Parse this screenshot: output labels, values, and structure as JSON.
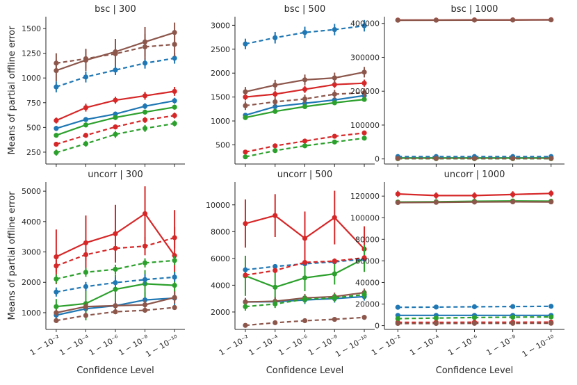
{
  "figure": {
    "xlabel": "Confidence Level",
    "ylabel": "Means of partial offline error",
    "x_tick_labels": [
      "1 − 10⁻²",
      "1 − 10⁻⁴",
      "1 − 10⁻⁶",
      "1 − 10⁻⁸",
      "1 − 10⁻¹⁰"
    ],
    "colors": {
      "blue": "#1f77b4",
      "red": "#d62728",
      "green": "#2ca02c",
      "brown": "#8c564b"
    }
  },
  "chart_data": [
    {
      "type": "line",
      "title": "bsc | 300",
      "x": [
        2,
        4,
        6,
        8,
        10
      ],
      "ylim": [
        130,
        1620
      ],
      "yticks": [
        250,
        500,
        750,
        1000,
        1250,
        1500
      ],
      "xlabel": "",
      "ylabel": "Means of partial offline error",
      "series": [
        {
          "name": "blue-solid",
          "color": "#1f77b4",
          "dashed": false,
          "values": [
            490,
            580,
            635,
            715,
            770
          ],
          "err": [
            25,
            25,
            25,
            30,
            30
          ]
        },
        {
          "name": "red-solid",
          "color": "#d62728",
          "dashed": false,
          "values": [
            570,
            700,
            775,
            820,
            865
          ],
          "err": [
            30,
            40,
            35,
            40,
            45
          ]
        },
        {
          "name": "green-solid",
          "color": "#2ca02c",
          "dashed": false,
          "values": [
            420,
            525,
            600,
            655,
            705
          ],
          "err": [
            20,
            25,
            25,
            25,
            25
          ]
        },
        {
          "name": "brown-solid",
          "color": "#8c564b",
          "dashed": false,
          "values": [
            1075,
            1180,
            1265,
            1365,
            1460
          ],
          "err": [
            110,
            110,
            130,
            150,
            100
          ]
        },
        {
          "name": "blue-dashed",
          "color": "#1f77b4",
          "dashed": true,
          "values": [
            910,
            1010,
            1080,
            1150,
            1200
          ],
          "err": [
            55,
            55,
            50,
            55,
            55
          ]
        },
        {
          "name": "red-dashed",
          "color": "#d62728",
          "dashed": true,
          "values": [
            330,
            420,
            505,
            575,
            620
          ],
          "err": [
            25,
            25,
            25,
            30,
            30
          ]
        },
        {
          "name": "green-dashed",
          "color": "#2ca02c",
          "dashed": true,
          "values": [
            245,
            335,
            430,
            490,
            540
          ],
          "err": [
            30,
            30,
            35,
            35,
            30
          ]
        },
        {
          "name": "brown-dashed",
          "color": "#8c564b",
          "dashed": true,
          "values": [
            1150,
            1195,
            1245,
            1315,
            1340
          ],
          "err": [
            100,
            100,
            120,
            130,
            120
          ]
        }
      ]
    },
    {
      "type": "line",
      "title": "bsc | 500",
      "x": [
        2,
        4,
        6,
        8,
        10
      ],
      "ylim": [
        100,
        3180
      ],
      "yticks": [
        500,
        1000,
        1500,
        2000,
        2500,
        3000
      ],
      "xlabel": "",
      "ylabel": "",
      "series": [
        {
          "name": "blue-solid",
          "color": "#1f77b4",
          "dashed": false,
          "values": [
            1120,
            1300,
            1370,
            1440,
            1530
          ],
          "err": [
            40,
            45,
            40,
            45,
            50
          ]
        },
        {
          "name": "red-solid",
          "color": "#d62728",
          "dashed": false,
          "values": [
            1500,
            1560,
            1660,
            1760,
            1790
          ],
          "err": [
            70,
            70,
            75,
            70,
            75
          ]
        },
        {
          "name": "green-solid",
          "color": "#2ca02c",
          "dashed": false,
          "values": [
            1070,
            1200,
            1300,
            1380,
            1450
          ],
          "err": [
            40,
            40,
            40,
            45,
            45
          ]
        },
        {
          "name": "brown-solid",
          "color": "#8c564b",
          "dashed": false,
          "values": [
            1610,
            1750,
            1860,
            1900,
            2020
          ],
          "err": [
            100,
            110,
            110,
            110,
            110
          ]
        },
        {
          "name": "blue-dashed",
          "color": "#1f77b4",
          "dashed": true,
          "values": [
            2610,
            2740,
            2850,
            2910,
            2990
          ],
          "err": [
            110,
            120,
            120,
            120,
            120
          ]
        },
        {
          "name": "red-dashed",
          "color": "#d62728",
          "dashed": true,
          "values": [
            350,
            480,
            580,
            680,
            750
          ],
          "err": [
            20,
            20,
            20,
            20,
            25
          ]
        },
        {
          "name": "green-dashed",
          "color": "#2ca02c",
          "dashed": true,
          "values": [
            250,
            380,
            480,
            560,
            640
          ],
          "err": [
            20,
            20,
            20,
            20,
            25
          ]
        },
        {
          "name": "brown-dashed",
          "color": "#8c564b",
          "dashed": true,
          "values": [
            1320,
            1400,
            1460,
            1560,
            1590
          ],
          "err": [
            90,
            90,
            90,
            90,
            90
          ]
        }
      ]
    },
    {
      "type": "line",
      "title": "bsc | 1000",
      "x": [
        2,
        4,
        6,
        8,
        10
      ],
      "ylim": [
        -15000,
        420000
      ],
      "yticks": [
        0,
        100000,
        200000,
        300000,
        400000
      ],
      "xlabel": "",
      "ylabel": "",
      "series": [
        {
          "name": "blue-solid",
          "color": "#1f77b4",
          "dashed": false,
          "values": [
            3000,
            3000,
            3000,
            3000,
            3000
          ],
          "err": [
            500,
            500,
            500,
            500,
            500
          ]
        },
        {
          "name": "red-solid",
          "color": "#d62728",
          "dashed": false,
          "values": [
            410000,
            410000,
            410500,
            410500,
            411000
          ],
          "err": [
            1500,
            1500,
            1500,
            1500,
            1500
          ]
        },
        {
          "name": "green-solid",
          "color": "#2ca02c",
          "dashed": false,
          "values": [
            2500,
            2500,
            2500,
            2500,
            2500
          ],
          "err": [
            500,
            500,
            500,
            500,
            500
          ]
        },
        {
          "name": "brown-solid",
          "color": "#8c564b",
          "dashed": false,
          "values": [
            409500,
            409700,
            410000,
            410200,
            410500
          ],
          "err": [
            1500,
            1500,
            1500,
            1500,
            1500
          ]
        },
        {
          "name": "blue-dashed",
          "color": "#1f77b4",
          "dashed": true,
          "values": [
            7000,
            7000,
            7000,
            7000,
            7000
          ],
          "err": [
            800,
            800,
            800,
            800,
            800
          ]
        },
        {
          "name": "red-dashed",
          "color": "#d62728",
          "dashed": true,
          "values": [
            1000,
            1000,
            1000,
            1000,
            1000
          ],
          "err": [
            300,
            300,
            300,
            300,
            300
          ]
        },
        {
          "name": "green-dashed",
          "color": "#2ca02c",
          "dashed": true,
          "values": [
            800,
            800,
            800,
            800,
            800
          ],
          "err": [
            300,
            300,
            300,
            300,
            300
          ]
        },
        {
          "name": "brown-dashed",
          "color": "#8c564b",
          "dashed": true,
          "values": [
            1500,
            1500,
            1500,
            1500,
            1500
          ],
          "err": [
            400,
            400,
            400,
            400,
            400
          ]
        }
      ]
    },
    {
      "type": "line",
      "title": "uncorr | 300",
      "x": [
        2,
        4,
        6,
        8,
        10
      ],
      "ylim": [
        450,
        5300
      ],
      "yticks": [
        1000,
        2000,
        3000,
        4000,
        5000
      ],
      "xlabel": "Confidence Level",
      "ylabel": "Means of partial offline error",
      "series": [
        {
          "name": "blue-solid",
          "color": "#1f77b4",
          "dashed": false,
          "values": [
            920,
            1130,
            1230,
            1420,
            1480
          ],
          "err": [
            150,
            150,
            200,
            250,
            250
          ]
        },
        {
          "name": "red-solid",
          "color": "#d62728",
          "dashed": false,
          "values": [
            2840,
            3300,
            3600,
            4260,
            2880
          ],
          "err": [
            900,
            900,
            950,
            900,
            1500
          ]
        },
        {
          "name": "green-solid",
          "color": "#2ca02c",
          "dashed": false,
          "values": [
            1200,
            1300,
            1770,
            1950,
            1900
          ],
          "err": [
            250,
            550,
            500,
            450,
            450
          ]
        },
        {
          "name": "brown-solid",
          "color": "#8c564b",
          "dashed": false,
          "values": [
            1000,
            1200,
            1230,
            1260,
            1500
          ],
          "err": [
            100,
            130,
            150,
            150,
            200
          ]
        },
        {
          "name": "blue-dashed",
          "color": "#1f77b4",
          "dashed": true,
          "values": [
            1680,
            1860,
            1990,
            2090,
            2170
          ],
          "err": [
            150,
            150,
            180,
            180,
            150
          ]
        },
        {
          "name": "red-dashed",
          "color": "#d62728",
          "dashed": true,
          "values": [
            2540,
            2910,
            3120,
            3190,
            3470
          ],
          "err": [
            200,
            200,
            300,
            300,
            350
          ]
        },
        {
          "name": "green-dashed",
          "color": "#2ca02c",
          "dashed": true,
          "values": [
            2110,
            2330,
            2430,
            2640,
            2720
          ],
          "err": [
            150,
            150,
            150,
            150,
            150
          ]
        },
        {
          "name": "brown-dashed",
          "color": "#8c564b",
          "dashed": true,
          "values": [
            740,
            910,
            1030,
            1080,
            1170
          ],
          "err": [
            80,
            80,
            80,
            80,
            80
          ]
        }
      ]
    },
    {
      "type": "line",
      "title": "uncorr | 500",
      "x": [
        2,
        4,
        6,
        8,
        10
      ],
      "ylim": [
        700,
        11700
      ],
      "yticks": [
        2000,
        4000,
        6000,
        8000,
        10000
      ],
      "xlabel": "Confidence Level",
      "ylabel": "",
      "series": [
        {
          "name": "blue-solid",
          "color": "#1f77b4",
          "dashed": false,
          "values": [
            2750,
            2770,
            2900,
            3000,
            3150
          ],
          "err": [
            300,
            300,
            300,
            300,
            300
          ]
        },
        {
          "name": "red-solid",
          "color": "#d62728",
          "dashed": false,
          "values": [
            8600,
            9200,
            7500,
            9050,
            6700
          ],
          "err": [
            1800,
            1600,
            2000,
            2000,
            1700
          ]
        },
        {
          "name": "green-solid",
          "color": "#2ca02c",
          "dashed": false,
          "values": [
            4700,
            3850,
            4550,
            4850,
            6000
          ],
          "err": [
            1500,
            1200,
            1000,
            800,
            1000
          ]
        },
        {
          "name": "brown-solid",
          "color": "#8c564b",
          "dashed": false,
          "values": [
            2750,
            2800,
            3050,
            3150,
            3450
          ],
          "err": [
            300,
            300,
            300,
            300,
            300
          ]
        },
        {
          "name": "blue-dashed",
          "color": "#1f77b4",
          "dashed": true,
          "values": [
            5150,
            5400,
            5600,
            5750,
            5950
          ],
          "err": [
            150,
            150,
            150,
            150,
            150
          ]
        },
        {
          "name": "red-dashed",
          "color": "#d62728",
          "dashed": true,
          "values": [
            4750,
            5100,
            5700,
            5800,
            6050
          ],
          "err": [
            200,
            200,
            200,
            200,
            200
          ]
        },
        {
          "name": "green-dashed",
          "color": "#2ca02c",
          "dashed": true,
          "values": [
            2400,
            2600,
            2950,
            3050,
            3300
          ],
          "err": [
            300,
            300,
            300,
            300,
            300
          ]
        },
        {
          "name": "brown-dashed",
          "color": "#8c564b",
          "dashed": true,
          "values": [
            1000,
            1200,
            1350,
            1450,
            1600
          ],
          "err": [
            80,
            80,
            80,
            80,
            80
          ]
        }
      ]
    },
    {
      "type": "line",
      "title": "uncorr | 1000",
      "x": [
        2,
        4,
        6,
        8,
        10
      ],
      "ylim": [
        -3500,
        133000
      ],
      "yticks": [
        0,
        20000,
        40000,
        60000,
        80000,
        100000,
        120000
      ],
      "xlabel": "Confidence Level",
      "ylabel": "",
      "series": [
        {
          "name": "blue-solid",
          "color": "#1f77b4",
          "dashed": false,
          "values": [
            9500,
            9500,
            9500,
            9500,
            9500
          ],
          "err": [
            500,
            500,
            500,
            500,
            500
          ]
        },
        {
          "name": "red-solid",
          "color": "#d62728",
          "dashed": false,
          "values": [
            122000,
            120500,
            120500,
            121500,
            122500
          ],
          "err": [
            3000,
            3000,
            3000,
            3000,
            3000
          ]
        },
        {
          "name": "green-solid",
          "color": "#2ca02c",
          "dashed": false,
          "values": [
            114500,
            114800,
            115200,
            115500,
            115300
          ],
          "err": [
            1500,
            1500,
            1500,
            1500,
            1500
          ]
        },
        {
          "name": "brown-solid",
          "color": "#8c564b",
          "dashed": false,
          "values": [
            114000,
            114200,
            114500,
            114700,
            114600
          ],
          "err": [
            1500,
            1500,
            1500,
            1500,
            1500
          ]
        },
        {
          "name": "blue-dashed",
          "color": "#1f77b4",
          "dashed": true,
          "values": [
            17000,
            17200,
            17500,
            17700,
            17900
          ],
          "err": [
            700,
            700,
            700,
            700,
            700
          ]
        },
        {
          "name": "red-dashed",
          "color": "#d62728",
          "dashed": true,
          "values": [
            3000,
            3000,
            3100,
            3100,
            3200
          ],
          "err": [
            300,
            300,
            300,
            300,
            300
          ]
        },
        {
          "name": "green-dashed",
          "color": "#2ca02c",
          "dashed": true,
          "values": [
            6500,
            7000,
            7500,
            7800,
            8000
          ],
          "err": [
            400,
            400,
            400,
            400,
            400
          ]
        },
        {
          "name": "brown-dashed",
          "color": "#8c564b",
          "dashed": true,
          "values": [
            2000,
            2000,
            2100,
            2100,
            2200
          ],
          "err": [
            300,
            300,
            300,
            300,
            300
          ]
        }
      ]
    }
  ]
}
